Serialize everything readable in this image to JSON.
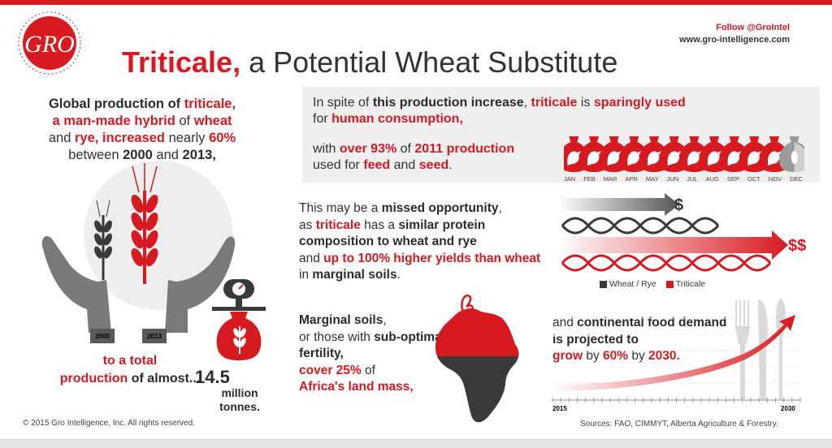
{
  "header": {
    "logo_text": "GRO",
    "logo_ring_text": "Providing data. Driving progress.",
    "follow": "Follow @GroIntel",
    "website": "www.gro-intelligence.com",
    "title_highlight": "Triticale,",
    "title_rest": " a Potential Wheat Substitute"
  },
  "left_panel": {
    "p1": "Global production of ",
    "p2": "triticale,",
    "p3": "a man-made hybrid",
    "p4": " of ",
    "p5": "wheat",
    "p6": "and ",
    "p7": "rye, increased",
    "p8": " nearly ",
    "p9": "60%",
    "p10": "between ",
    "p11": "2000",
    "p12": " and ",
    "p13": "2013,",
    "year_2000": "2000",
    "year_2013": "2013",
    "total_1": "to a total",
    "total_2": "production",
    "total_3": " of almost...",
    "amount": "14.5",
    "unit_1": "million",
    "unit_2": "tonnes."
  },
  "consumption_box": {
    "a1": "In spite of ",
    "a2": "this production increase",
    "a3": ", ",
    "a4": "triticale",
    "a5": " is ",
    "a6": "sparingly used",
    "a7": "for ",
    "a8": "human consumption,",
    "b1": "with ",
    "b2": "over 93%",
    "b3": " of ",
    "b4": "2011 production",
    "b5": "used for ",
    "b6": "feed",
    "b7": " and ",
    "b8": "seed",
    "b9": ".",
    "months": [
      "JAN",
      "FEB",
      "MAR",
      "APR",
      "MAY",
      "JUN",
      "JUL",
      "AUG",
      "SEP",
      "OCT",
      "NOV",
      "DEC"
    ]
  },
  "opportunity": {
    "c1": "This may be a ",
    "c2": "missed opportunity",
    "c3": ",",
    "c4": "as ",
    "c5": "triticale",
    "c6": " has a ",
    "c7": "similar protein composition to wheat and rye",
    "c8": "and ",
    "c9": "up to 100% higher yields than wheat",
    "c10": " in ",
    "c11": "marginal soils",
    "c12": ".",
    "dollar_single": "$",
    "dollar_double": "$$",
    "legend_wheat": "Wheat / Rye",
    "legend_triticale": "Triticale"
  },
  "soils": {
    "d1": "Marginal soils",
    "d2": ",",
    "d3": "or those with ",
    "d4": "sub-optimal fertility,",
    "d5": "cover 25%",
    "d6": " of",
    "d7": "Africa's land mass,"
  },
  "food": {
    "e1": "and ",
    "e2": "continental food demand",
    "e3": " is projected to",
    "e4": "grow",
    "e5": " by ",
    "e6": "60%",
    "e7": " by ",
    "e8": "2030.",
    "year_start": "2015",
    "year_end": "2030"
  },
  "footer": {
    "copyright": "© 2015 Gro Intelligence, Inc. All rights reserved.",
    "sources": "Sources: FAO, CIMMYT, Alberta Agriculture & Forestry."
  },
  "colors": {
    "brand_red": "#d71920",
    "dark_gray": "#3a3a3a",
    "light_gray": "#efefef"
  }
}
